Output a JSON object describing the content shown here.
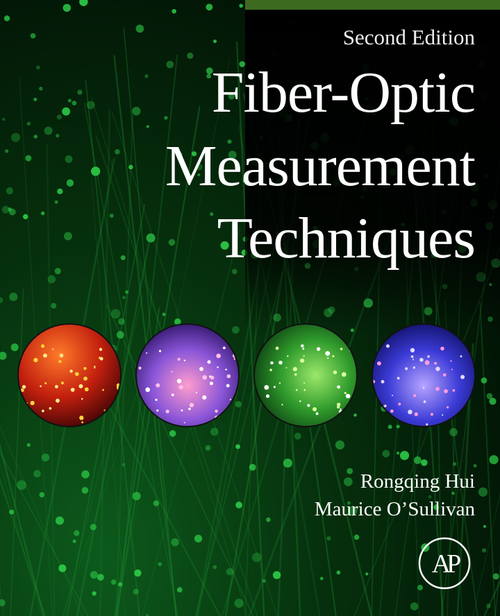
{
  "cover": {
    "edition": "Second Edition",
    "title_lines": [
      "Fiber-Optic",
      "Measurement",
      "Techniques"
    ],
    "authors": [
      "Rongqing Hui",
      "Maurice O’Sullivan"
    ],
    "publisher_logo_text": "AP",
    "colors": {
      "top_bar": "#3c6a1e",
      "background": "#06300d",
      "dots": "#2fd04a"
    },
    "images": [
      "orange-red-fiber-circle",
      "pink-purple-fiber-circle",
      "green-fiber-circle",
      "blue-fiber-circle"
    ]
  }
}
